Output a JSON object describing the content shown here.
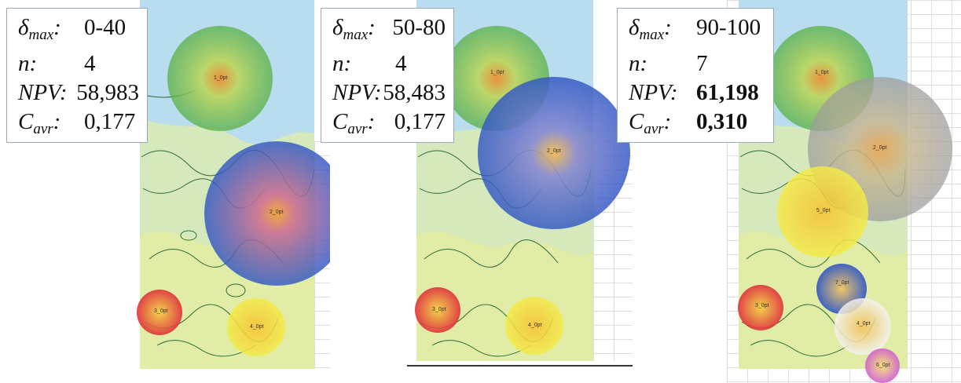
{
  "panels": [
    {
      "labels": {
        "delta": "δ",
        "delta_sub": "max",
        "n": "n",
        "npv": "NPV",
        "cavr": "C",
        "cavr_sub": "avr"
      },
      "delta_max": "0-40",
      "n": "4",
      "npv": "58,983",
      "cavr": "0,177",
      "wells": [
        "1_0pt",
        "2_0pt",
        "3_0pt",
        "4_0pt"
      ]
    },
    {
      "labels": {
        "delta": "δ",
        "delta_sub": "max",
        "n": "n",
        "npv": "NPV",
        "cavr": "C",
        "cavr_sub": "avr"
      },
      "delta_max": "50-80",
      "n": "4",
      "npv": "58,483",
      "cavr": "0,177",
      "wells": [
        "1_0pt",
        "2_0pt",
        "3_0pt",
        "4_0pt"
      ]
    },
    {
      "labels": {
        "delta": "δ",
        "delta_sub": "max",
        "n": "n",
        "npv": "NPV",
        "cavr": "C",
        "cavr_sub": "avr"
      },
      "delta_max": "90-100",
      "n": "7",
      "npv": "61,198",
      "cavr": "0,310",
      "wells": [
        "1_0pt",
        "2_0pt",
        "3_0pt",
        "4_0pt",
        "5_0pt",
        "6_0pt",
        "7_0pt"
      ]
    }
  ],
  "colors": {
    "green": "#6abf4b",
    "blue": "#3a5fc8",
    "red": "#e0403a",
    "yellow": "#f3e23a",
    "gray": "#a8a8a8",
    "white": "#f4f4f4",
    "magenta": "#d05fd0",
    "map_blue": "#a9d3ea",
    "map_yellow": "#e7ec9a",
    "map_green": "#c7e6c0"
  }
}
